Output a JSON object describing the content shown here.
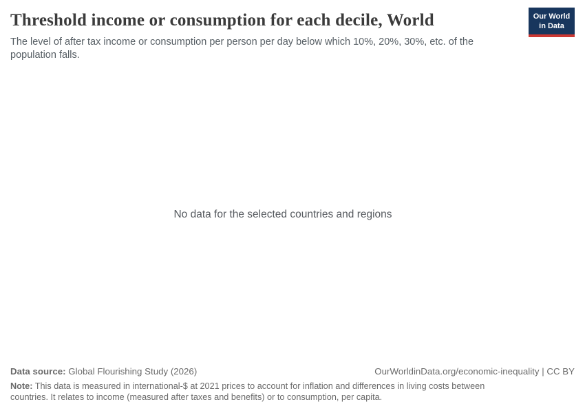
{
  "header": {
    "title": "Threshold income or consumption for each decile, World",
    "subtitle": "The level of after tax income or consumption per person per day below which 10%, 20%, 30%, etc. of the population falls.",
    "logo": {
      "line1": "Our World",
      "line2": "in Data"
    }
  },
  "chart": {
    "no_data_message": "No data for the selected countries and regions"
  },
  "chart_data": {
    "type": "none",
    "title": "Threshold income or consumption for each decile, World",
    "subtitle": "The level of after tax income or consumption per person per day below which 10%, 20%, 30%, etc. of the population falls.",
    "no_data_message": "No data for the selected countries and regions",
    "series": [],
    "notes": "Chart frame is in empty state; no axes, gridlines, legend or data points are rendered."
  },
  "footer": {
    "data_source_label": "Data source:",
    "data_source_value": "Global Flourishing Study (2026)",
    "attribution": "OurWorldinData.org/economic-inequality | CC BY",
    "note_label": "Note:",
    "note_text": "This data is measured in international-$ at 2021 prices to account for inflation and differences in living costs between countries. It relates to income (measured after taxes and benefits) or to consumption, per capita."
  },
  "colors": {
    "background": "#ffffff",
    "title": "#3b3b3b",
    "subtitle": "#555d63",
    "no_data_text": "#55595e",
    "footer_text": "#6a6a6a",
    "logo_background": "#18365d",
    "logo_accent": "#cc3833",
    "logo_text": "#ffffff"
  }
}
